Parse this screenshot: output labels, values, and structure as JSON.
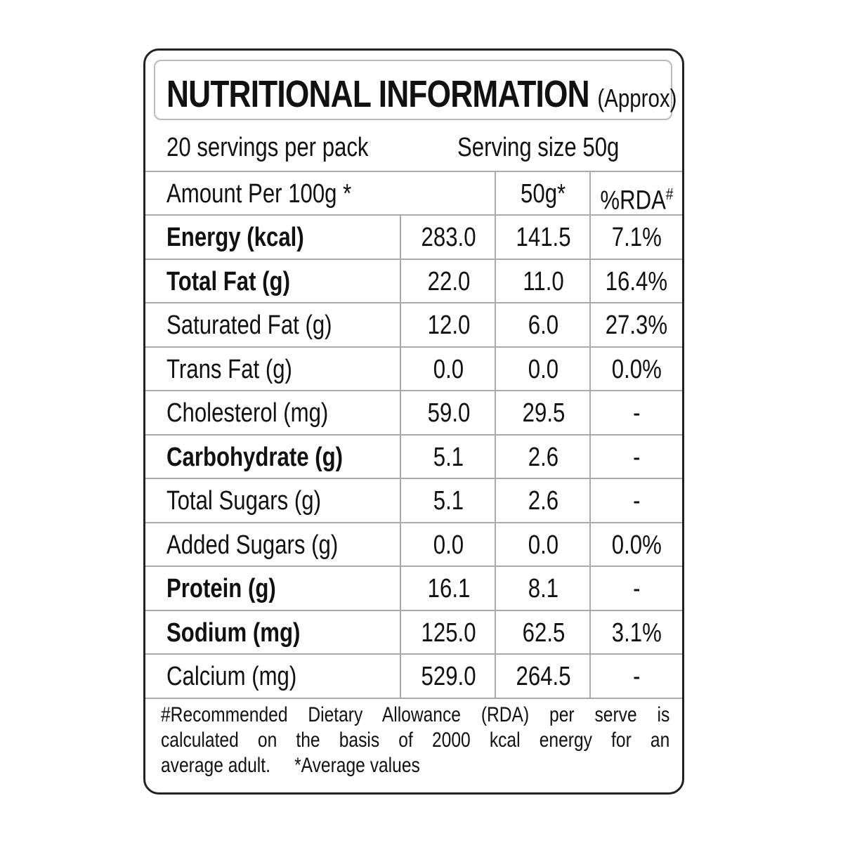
{
  "title": {
    "main": "NUTRITIONAL INFORMATION",
    "suffix": "(Approx)"
  },
  "servings_per_pack": "20 servings per pack",
  "serving_size": "Serving size 50g",
  "header": {
    "amount": "Amount Per 100g *",
    "col_serving": "50g*",
    "col_rda": "%RDA",
    "col_rda_mark": "#"
  },
  "rows": [
    {
      "name": "Energy (kcal)",
      "per100": "283.0",
      "per50": "141.5",
      "rda": "7.1%",
      "bold": true
    },
    {
      "name": "Total Fat (g)",
      "per100": "22.0",
      "per50": "11.0",
      "rda": "16.4%",
      "bold": true
    },
    {
      "name": "Saturated Fat (g)",
      "per100": "12.0",
      "per50": "6.0",
      "rda": "27.3%",
      "bold": false
    },
    {
      "name": "Trans Fat (g)",
      "per100": "0.0",
      "per50": "0.0",
      "rda": "0.0%",
      "bold": false
    },
    {
      "name": "Cholesterol (mg)",
      "per100": "59.0",
      "per50": "29.5",
      "rda": "-",
      "bold": false
    },
    {
      "name": "Carbohydrate (g)",
      "per100": "5.1",
      "per50": "2.6",
      "rda": "-",
      "bold": true
    },
    {
      "name": "Total Sugars (g)",
      "per100": "5.1",
      "per50": "2.6",
      "rda": "-",
      "bold": false
    },
    {
      "name": "Added Sugars (g)",
      "per100": "0.0",
      "per50": "0.0",
      "rda": "0.0%",
      "bold": false
    },
    {
      "name": "Protein (g)",
      "per100": "16.1",
      "per50": "8.1",
      "rda": "-",
      "bold": true
    },
    {
      "name": "Sodium (mg)",
      "per100": "125.0",
      "per50": "62.5",
      "rda": "3.1%",
      "bold": true
    },
    {
      "name": "Calcium (mg)",
      "per100": "529.0",
      "per50": "264.5",
      "rda": "-",
      "bold": false
    }
  ],
  "footnote": {
    "line1": "#Recommended Dietary Allowance (RDA) per serve is",
    "line2": "calculated on the basis of 2000 kcal energy for an",
    "line3a": "average adult.",
    "line3b": "*Average values"
  }
}
